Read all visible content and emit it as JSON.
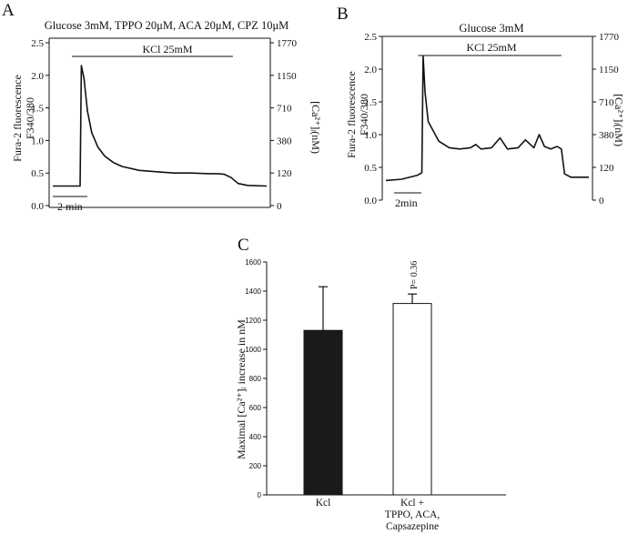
{
  "chart_data": [
    {
      "panel": "A",
      "type": "line",
      "condition": "Glucose 3mM, TPPO 20μM, ACA 20μM, CPZ 10μM",
      "stimulus": "KCl 25mM",
      "stimulus_x_min": [
        2.2,
        20.8
      ],
      "scalebar": "2 min",
      "ylabel": [
        "Fura-2 fluorescence",
        "F340/380"
      ],
      "y2label": "[Ca²⁺]ᵢ(nM)",
      "ylim": [
        0,
        2.5
      ],
      "xlim_min": [
        0,
        24.7
      ],
      "y_ticks": [
        "0.0",
        "0.5",
        "1.0",
        "1.5",
        "2.0",
        "2.5"
      ],
      "y2_ticks": [
        "0",
        "120",
        "380",
        "710",
        "1150",
        "1770"
      ],
      "x_min": [
        0,
        2.7,
        3.15,
        3.3,
        3.6,
        4.0,
        4.5,
        5.2,
        6.0,
        7.0,
        8.0,
        10.0,
        12.0,
        14.0,
        16.0,
        18.0,
        19.0,
        19.8,
        20.6,
        21.4,
        22.5,
        24.7
      ],
      "ratio": [
        0.3,
        0.3,
        0.3,
        2.15,
        1.95,
        1.45,
        1.12,
        0.9,
        0.76,
        0.66,
        0.6,
        0.54,
        0.52,
        0.5,
        0.5,
        0.49,
        0.49,
        0.48,
        0.43,
        0.34,
        0.31,
        0.3
      ]
    },
    {
      "panel": "B",
      "type": "line",
      "condition": "Glucose 3mM",
      "stimulus": "KCl 25mM",
      "stimulus_x_min": [
        3.05,
        16.6
      ],
      "scalebar": "2min",
      "ylabel": [
        "Fura-2 fluorescence",
        "F340/380"
      ],
      "y2label": "[Ca²⁺]ᵢ(nM)",
      "ylim": [
        0,
        2.5
      ],
      "xlim_min": [
        0,
        19.2
      ],
      "y_ticks": [
        "0.0",
        "0.5",
        "1.0",
        "1.5",
        "2.0",
        "2.5"
      ],
      "y2_ticks": [
        "0",
        "120",
        "380",
        "710",
        "1150",
        "1770"
      ],
      "x_min": [
        0,
        1.5,
        3.0,
        3.4,
        3.52,
        3.7,
        4.0,
        4.5,
        5.0,
        6.0,
        7.0,
        8.0,
        8.5,
        9.0,
        10.0,
        10.8,
        11.5,
        12.5,
        13.2,
        14.0,
        14.5,
        15.0,
        15.6,
        16.2,
        16.6,
        16.9,
        17.5,
        19.2
      ],
      "ratio": [
        0.3,
        0.32,
        0.38,
        0.42,
        2.2,
        1.65,
        1.2,
        1.05,
        0.9,
        0.8,
        0.78,
        0.8,
        0.85,
        0.78,
        0.8,
        0.95,
        0.78,
        0.8,
        0.92,
        0.8,
        1.0,
        0.82,
        0.78,
        0.82,
        0.78,
        0.4,
        0.35,
        0.35
      ]
    },
    {
      "panel": "C",
      "type": "bar",
      "ylabel": "Maximal [Ca²⁺]ᵢ increase in nM",
      "ylim": [
        0,
        1600
      ],
      "y_ticks": [
        "0",
        "200",
        "400",
        "600",
        "800",
        "1000",
        "1200",
        "1400",
        "1600"
      ],
      "categories": [
        "Kcl",
        "Kcl + TPPO, ACA, Capsazepine"
      ],
      "category_lines": [
        [
          "Kcl"
        ],
        [
          "Kcl +",
          "TPPO, ACA,",
          "Capsazepine"
        ]
      ],
      "values": [
        1130,
        1315
      ],
      "errors": [
        300,
        65
      ],
      "bar_fills": [
        "#1a1a1a",
        "#ffffff"
      ],
      "annotation": "P= 0.36"
    }
  ]
}
